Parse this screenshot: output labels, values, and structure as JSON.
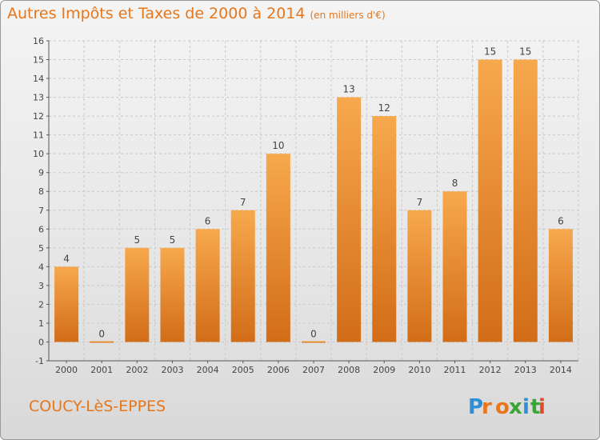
{
  "header": {
    "title": "Autres Impôts et Taxes de 2000 à 2014",
    "unit": "(en milliers d'€)"
  },
  "footer": {
    "commune": "COUCY-LèS-EPPES",
    "brand": "Proxiti"
  },
  "colors": {
    "title": "#e8761a",
    "bar_top": "#f7a84d",
    "bar_bottom": "#d26d17",
    "grid": "#c8c8c8",
    "axis": "#555555",
    "text": "#444444"
  },
  "chart_data": {
    "type": "bar",
    "title": "Autres Impôts et Taxes de 2000 à 2014",
    "unit": "(en milliers d'€)",
    "categories": [
      "2000",
      "2001",
      "2002",
      "2003",
      "2004",
      "2005",
      "2006",
      "2007",
      "2008",
      "2009",
      "2010",
      "2011",
      "2012",
      "2013",
      "2014"
    ],
    "values": [
      4,
      0,
      5,
      5,
      6,
      7,
      10,
      0,
      13,
      12,
      7,
      8,
      15,
      15,
      6
    ],
    "data_labels": [
      "4",
      "0",
      "5",
      "5",
      "6",
      "7",
      "10",
      "0",
      "13",
      "12",
      "7",
      "8",
      "15",
      "15",
      "6"
    ],
    "ylim": [
      -1,
      16
    ],
    "yticks": [
      -1,
      0,
      1,
      2,
      3,
      4,
      5,
      6,
      7,
      8,
      9,
      10,
      11,
      12,
      13,
      14,
      15,
      16
    ],
    "grid": true,
    "xlabel": "",
    "ylabel": ""
  }
}
